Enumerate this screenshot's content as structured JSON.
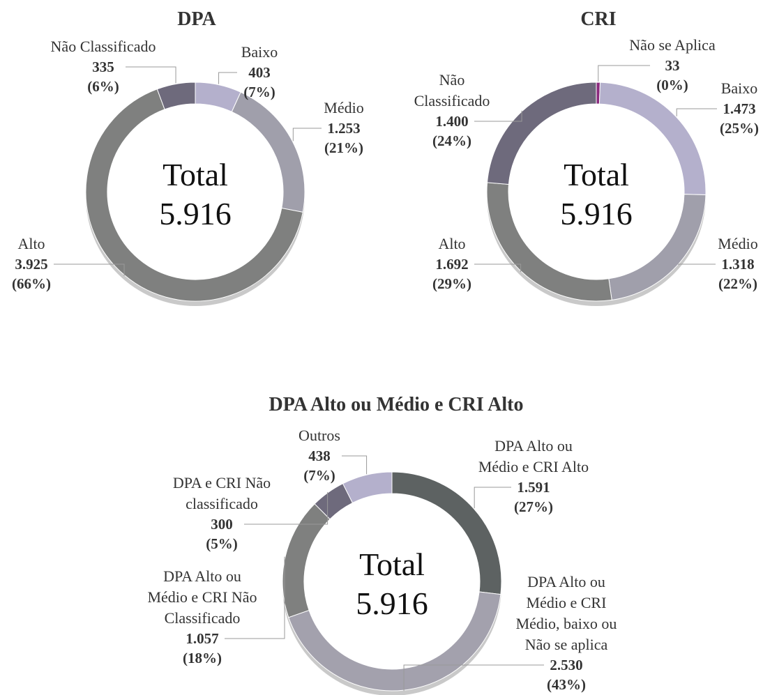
{
  "chart_data": [
    {
      "type": "donut",
      "title": "DPA",
      "categories": [
        "Baixo",
        "Médio",
        "Alto",
        "Não Classificado"
      ],
      "values": [
        403,
        1253,
        3925,
        335
      ],
      "value_labels": [
        "403",
        "1.253",
        "3.925",
        "335"
      ],
      "percents": [
        7,
        21,
        66,
        6
      ],
      "percent_labels": [
        "(7%)",
        "(21%)",
        "(66%)",
        "(6%)"
      ],
      "colors": [
        "#b4b0cc",
        "#a09fab",
        "#7f807f",
        "#6e6a7c"
      ],
      "center_title": "Total",
      "total": 5916,
      "total_label": "5.916"
    },
    {
      "type": "donut",
      "title": "CRI",
      "categories": [
        "Não se Aplica",
        "Baixo",
        "Médio",
        "Alto",
        "Não\nClassificado"
      ],
      "values": [
        33,
        1473,
        1318,
        1692,
        1400
      ],
      "value_labels": [
        "33",
        "1.473",
        "1.318",
        "1.692",
        "1.400"
      ],
      "percents": [
        0,
        25,
        22,
        29,
        24
      ],
      "percent_labels": [
        "(0%)",
        "(25%)",
        "(22%)",
        "(29%)",
        "(24%)"
      ],
      "colors": [
        "#8b2a7e",
        "#b4b0cc",
        "#a09fab",
        "#7f807f",
        "#6e6a7c"
      ],
      "center_title": "Total",
      "total": 5916,
      "total_label": "5.916"
    },
    {
      "type": "donut",
      "title": "DPA Alto ou Médio e CRI Alto",
      "categories": [
        "DPA Alto ou\nMédio e CRI Alto",
        "DPA Alto ou\nMédio e CRI\nMédio, baixo ou\nNão se aplica",
        "DPA Alto ou\nMédio e CRI Não\nClassificado",
        "DPA e CRI Não\nclassificado",
        "Outros"
      ],
      "values": [
        1591,
        2530,
        1057,
        300,
        438
      ],
      "value_labels": [
        "1.591",
        "2.530",
        "1.057",
        "300",
        "438"
      ],
      "percents": [
        27,
        43,
        18,
        5,
        7
      ],
      "percent_labels": [
        "(27%)",
        "(43%)",
        "(18%)",
        "(5%)",
        "(7%)"
      ],
      "colors": [
        "#5d6262",
        "#a3a1ad",
        "#7f807f",
        "#6e6a7c",
        "#b4b0cc"
      ],
      "center_title": "Total",
      "total": 5916,
      "total_label": "5.916"
    }
  ]
}
